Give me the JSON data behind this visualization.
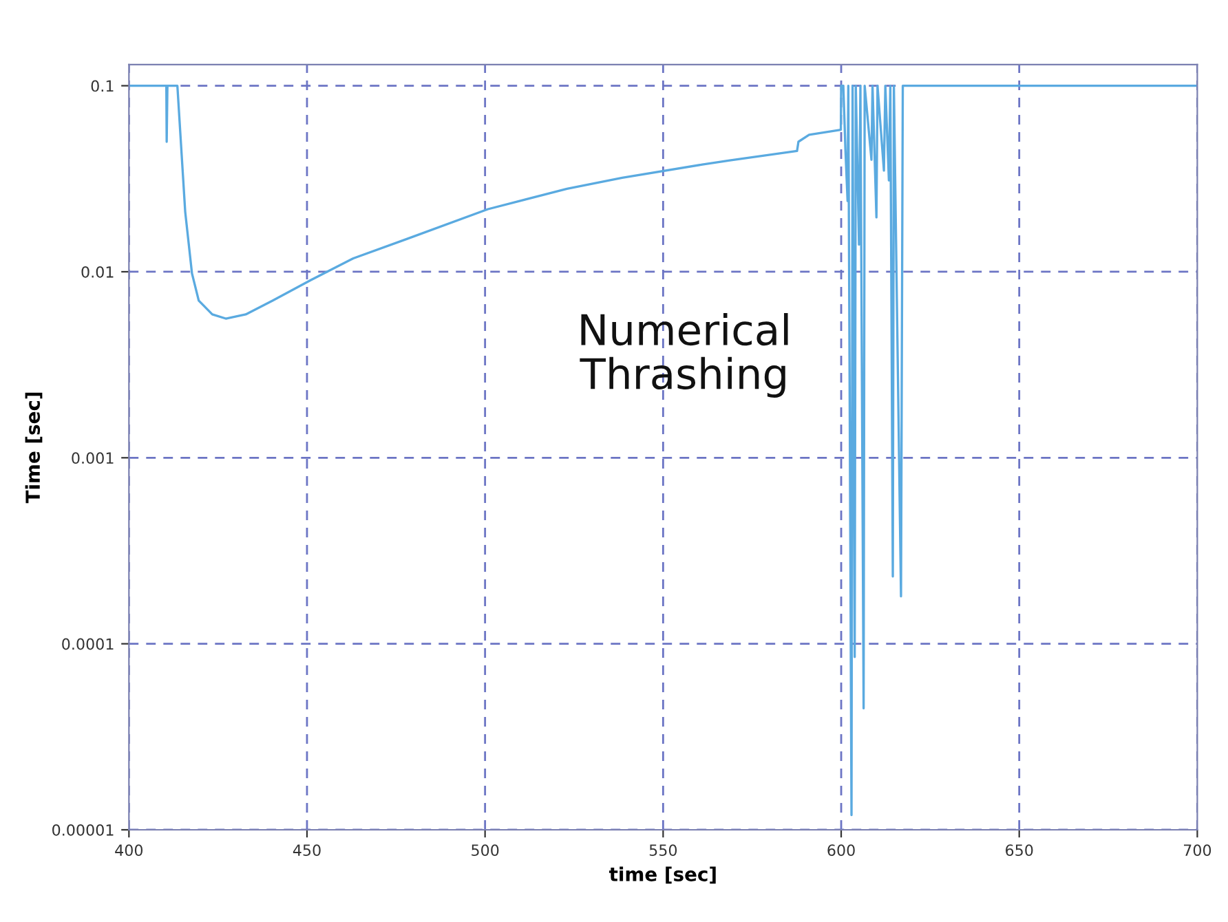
{
  "chart_data": {
    "type": "line",
    "xlabel": "time [sec]",
    "ylabel": "Time [sec]",
    "log": "y",
    "grid": true,
    "marker": "none",
    "line_style": "solid",
    "annotations": [
      "Numerical\nThrashing"
    ],
    "xlim": [
      400,
      700
    ],
    "xticks": [
      400,
      450,
      500,
      550,
      600,
      650,
      700
    ],
    "ylim": [
      1e-05,
      0.13
    ],
    "yticks": [
      {
        "value": 1e-05,
        "label": "0.00001"
      },
      {
        "value": 0.0001,
        "label": "0.0001"
      },
      {
        "value": 0.001,
        "label": "0.001"
      },
      {
        "value": 0.01,
        "label": "0.01"
      },
      {
        "value": 0.1,
        "label": "0.1"
      }
    ],
    "series": [
      {
        "color": "#5aaae0",
        "x": [
          400,
          410.5,
          410.6,
          410.8,
          413.6,
          415.8,
          417.7,
          419.6,
          423.4,
          427.2,
          432.8,
          440.4,
          451,
          463,
          478,
          500.8,
          523,
          538.5,
          561,
          568.7,
          587.6,
          588,
          591,
          599.9,
          600,
          600.6,
          601.2,
          601.8,
          602,
          602.9,
          603.2,
          603.8,
          604.1,
          605,
          605.4,
          606.3,
          606.6,
          608.5,
          608.8,
          609.9,
          610.2,
          612,
          612.4,
          613.4,
          613.8,
          614.5,
          614.8,
          616.8,
          617.3,
          700
        ],
        "values": [
          0.1,
          0.1,
          0.05,
          0.1,
          0.1,
          0.021,
          0.0098,
          0.007,
          0.0059,
          0.0056,
          0.0059,
          0.007,
          0.009,
          0.0118,
          0.015,
          0.0217,
          0.0279,
          0.032,
          0.0377,
          0.0397,
          0.0446,
          0.05,
          0.0545,
          0.058,
          0.1,
          0.1,
          0.045,
          0.024,
          0.1,
          1.2e-05,
          0.1,
          8.5e-05,
          0.1,
          0.014,
          0.1,
          4.5e-05,
          0.1,
          0.04,
          0.1,
          0.0196,
          0.1,
          0.035,
          0.1,
          0.031,
          0.1,
          0.00023,
          0.1,
          0.00018,
          0.1,
          0.1
        ]
      }
    ]
  }
}
